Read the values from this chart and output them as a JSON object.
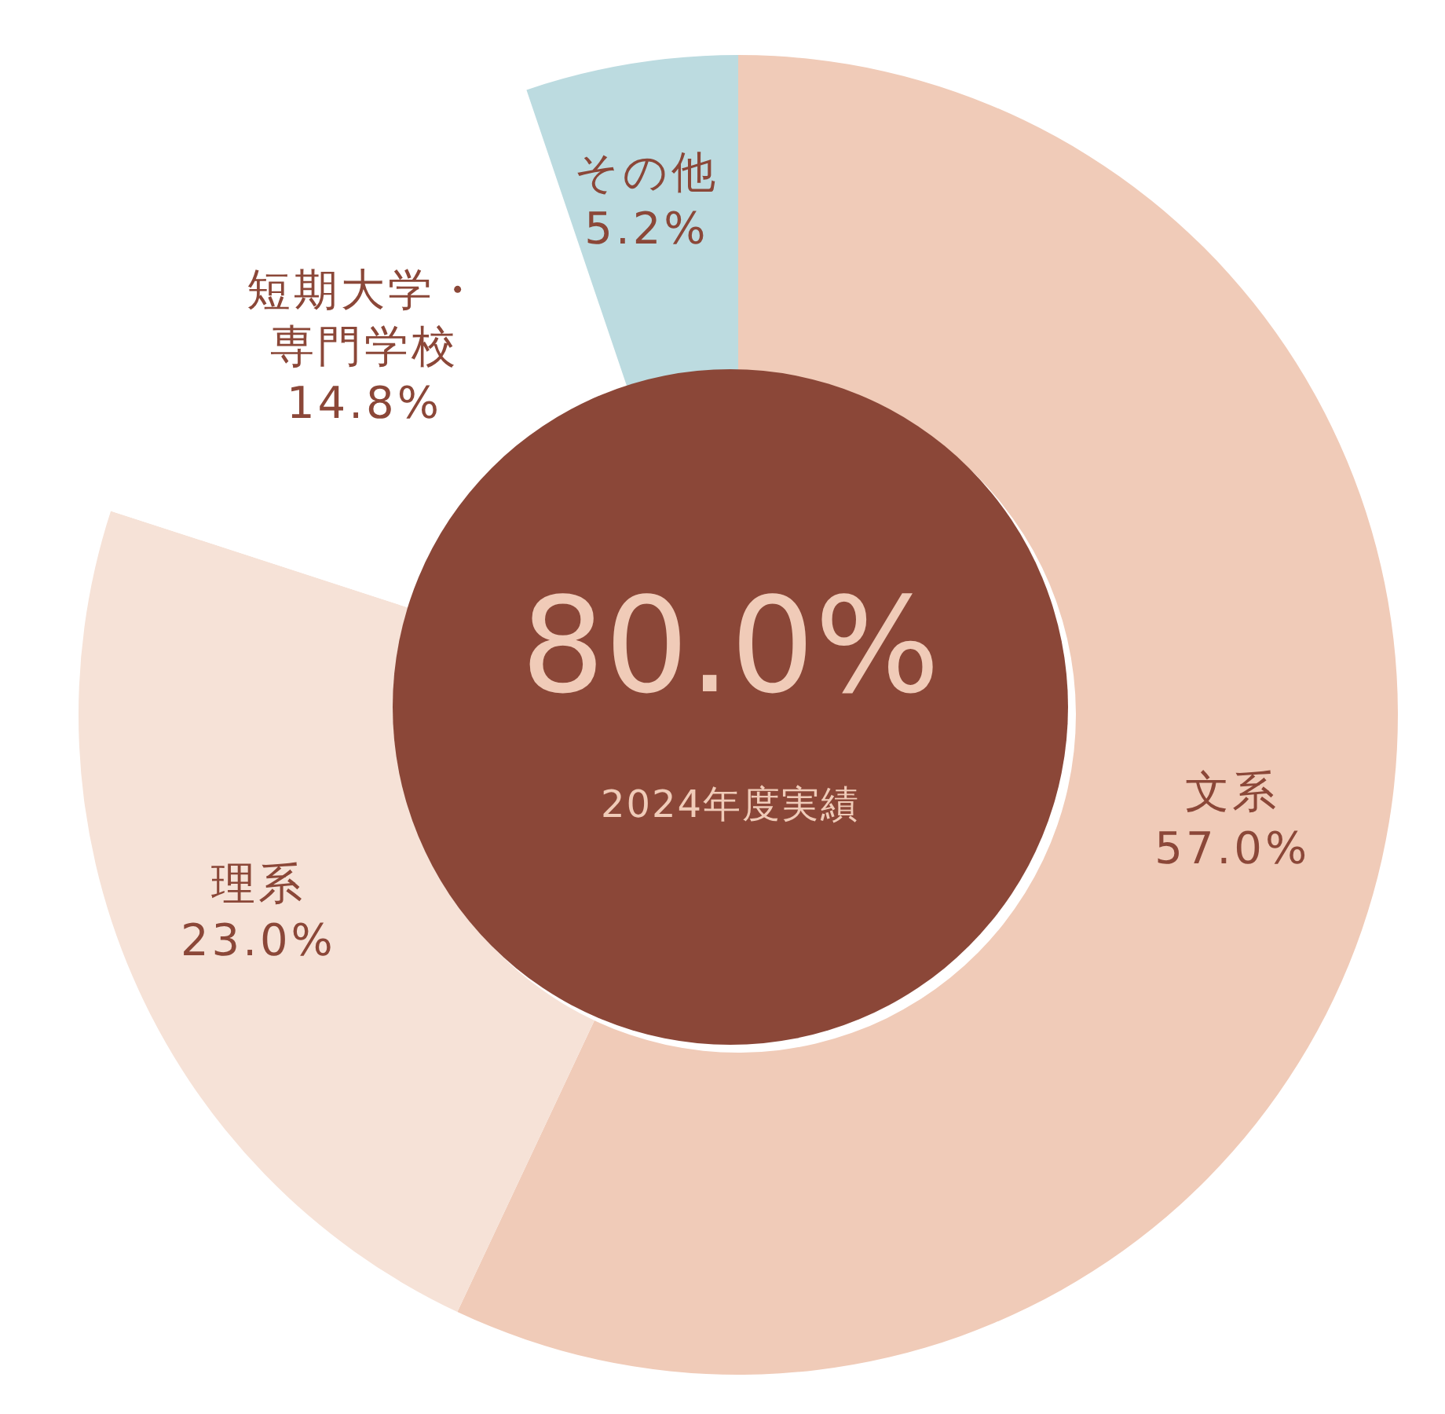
{
  "chart_data": {
    "type": "donut",
    "categories": [
      "文系",
      "理系",
      "短期大学・専門学校",
      "その他"
    ],
    "values": [
      57.0,
      23.0,
      14.8,
      5.2
    ],
    "colors": [
      "#f0cbb8",
      "#f6e2d7",
      "#ffffff",
      "#bcdbe0"
    ],
    "value_labels": [
      "57.0%",
      "23.0%",
      "14.8%",
      "5.2%"
    ],
    "annotations": [
      "80.0%",
      "2024年度実績"
    ],
    "legend": false
  }
}
